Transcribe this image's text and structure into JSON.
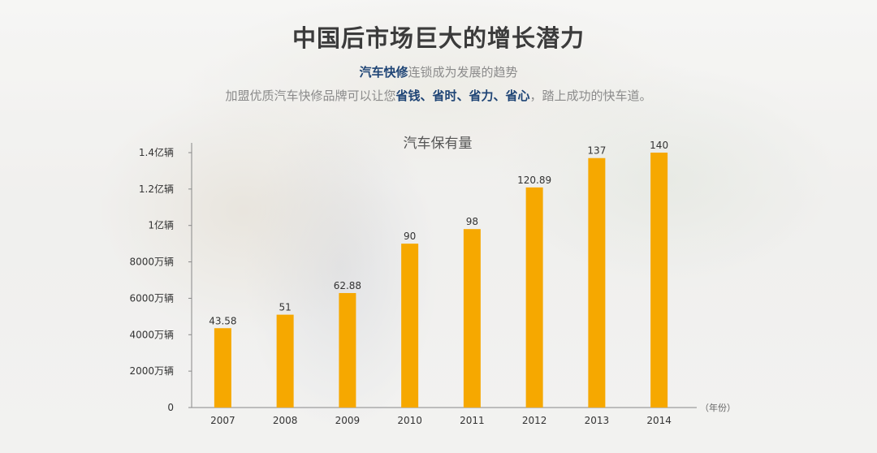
{
  "header": {
    "title": "中国后市场巨大的增长潜力",
    "line1_highlight": "汽车快修",
    "line1_rest": "连锁成为发展的趋势",
    "line2_prefix": "加盟优质汽车快修品牌可以让您",
    "line2_highlight": "省钱、省时、省力、省心",
    "line2_suffix": "，踏上成功的快车道。"
  },
  "colors": {
    "bar": "#f6a800",
    "highlight": "#1e4475"
  },
  "chart_data": {
    "type": "bar",
    "title": "汽车保有量",
    "categories": [
      "2007",
      "2008",
      "2009",
      "2010",
      "2011",
      "2012",
      "2013",
      "2014"
    ],
    "values": [
      43.58,
      51,
      62.88,
      90,
      98,
      120.89,
      137,
      140
    ],
    "data_labels": [
      "43.58",
      "51",
      "62.88",
      "90",
      "98",
      "120.89",
      "137",
      "140"
    ],
    "ylim": [
      0,
      140
    ],
    "yticks": [
      {
        "value": 0,
        "label": "0"
      },
      {
        "value": 20,
        "label": "2000万辆"
      },
      {
        "value": 40,
        "label": "4000万辆"
      },
      {
        "value": 60,
        "label": "6000万辆"
      },
      {
        "value": 80,
        "label": "8000万辆"
      },
      {
        "value": 100,
        "label": "1亿辆"
      },
      {
        "value": 120,
        "label": "1.2亿辆"
      },
      {
        "value": 140,
        "label": "1.4亿辆"
      }
    ],
    "x_unit_label": "（年份）",
    "grid": false
  }
}
